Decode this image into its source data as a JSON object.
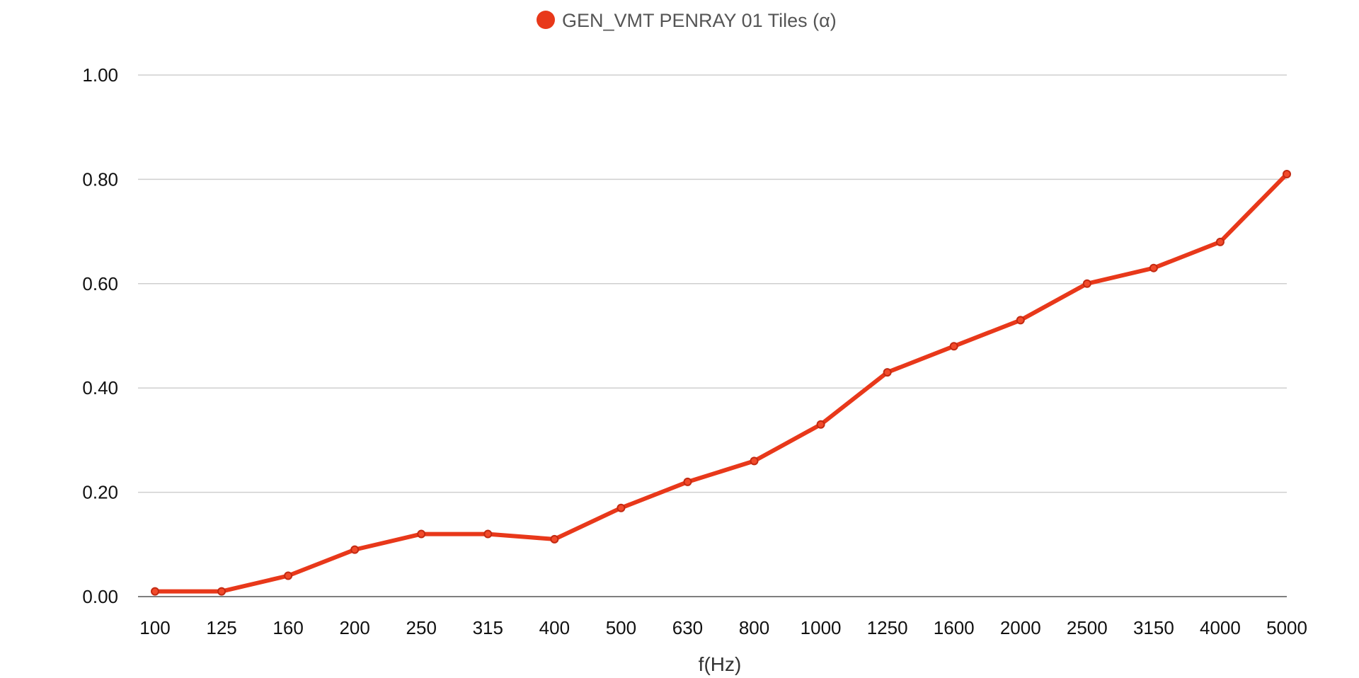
{
  "chart_data": {
    "type": "line",
    "title": "",
    "xlabel": "f(Hz)",
    "ylabel": "",
    "categories": [
      "100",
      "125",
      "160",
      "200",
      "250",
      "315",
      "400",
      "500",
      "630",
      "800",
      "1000",
      "1250",
      "1600",
      "2000",
      "2500",
      "3150",
      "4000",
      "5000"
    ],
    "series": [
      {
        "name": "GEN_VMT PENRAY 01 Tiles (α)",
        "color": "#e8381a",
        "values": [
          0.01,
          0.01,
          0.04,
          0.09,
          0.12,
          0.12,
          0.11,
          0.17,
          0.22,
          0.26,
          0.33,
          0.43,
          0.48,
          0.53,
          0.6,
          0.63,
          0.68,
          0.81
        ]
      }
    ],
    "ylim": [
      0,
      1
    ],
    "yticks": [
      "0.00",
      "0.20",
      "0.40",
      "0.60",
      "0.80",
      "1.00"
    ],
    "ytick_values": [
      0,
      0.2,
      0.4,
      0.6,
      0.8,
      1.0
    ],
    "grid": true,
    "legend_position": "top-center",
    "colors": {
      "gridline": "#cfcfcf",
      "baseline": "#555555",
      "point_fill": "#f24a2a",
      "point_stroke": "#c22a12"
    }
  }
}
